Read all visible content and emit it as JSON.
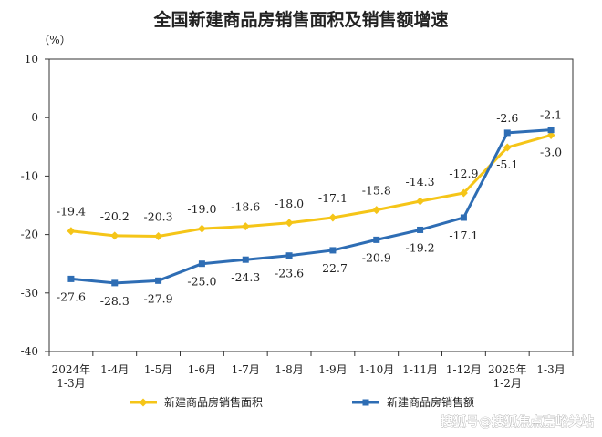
{
  "chart_data": {
    "type": "line",
    "title": "全国新建商品房销售面积及销售额增速",
    "unit_label": "（%）",
    "ylim": [
      -40,
      10
    ],
    "yticks": [
      10,
      0,
      -10,
      -20,
      -30,
      -40
    ],
    "grid": false,
    "legend_position": "bottom",
    "categories": [
      [
        "2024年",
        "1-3月"
      ],
      [
        "1-4月"
      ],
      [
        "1-5月"
      ],
      [
        "1-6月"
      ],
      [
        "1-7月"
      ],
      [
        "1-8月"
      ],
      [
        "1-9月"
      ],
      [
        "1-10月"
      ],
      [
        "1-11月"
      ],
      [
        "1-12月"
      ],
      [
        "2025年",
        "1-2月"
      ],
      [
        "1-3月"
      ]
    ],
    "series": [
      {
        "name": "新建商品房销售面积",
        "color": "#F5C518",
        "marker": "diamond",
        "values": [
          -19.4,
          -20.2,
          -20.3,
          -19.0,
          -18.6,
          -18.0,
          -17.1,
          -15.8,
          -14.3,
          -12.9,
          -5.1,
          -3.0
        ],
        "labels": [
          "-19.4",
          "-20.2",
          "-20.3",
          "-19.0",
          "-18.6",
          "-18.0",
          "-17.1",
          "-15.8",
          "-14.3",
          "-12.9",
          "-5.1",
          "-3.0"
        ]
      },
      {
        "name": "新建商品房销售额",
        "color": "#2E6DB4",
        "marker": "square",
        "values": [
          -27.6,
          -28.3,
          -27.9,
          -25.0,
          -24.3,
          -23.6,
          -22.7,
          -20.9,
          -19.2,
          -17.1,
          -2.6,
          -2.1
        ],
        "labels": [
          "-27.6",
          "-28.3",
          "-27.9",
          "-25.0",
          "-24.3",
          "-23.6",
          "-22.7",
          "-20.9",
          "-19.2",
          "-17.1",
          "-2.6",
          "-2.1"
        ]
      }
    ]
  },
  "watermark": "搜狐号@搜狐焦点嘉峪关站"
}
